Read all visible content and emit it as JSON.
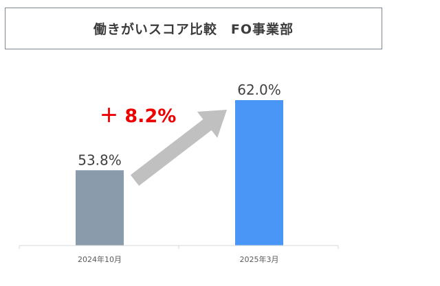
{
  "title": "働きがいスコア比較　FO事業部",
  "change_label": "＋ 8.2%",
  "colors": {
    "bar_2024": "#8a9bab",
    "bar_2025": "#4a96f7",
    "change_text": "#ee0000",
    "arrow": "#c0c0c0",
    "axis": "#d9d9d9",
    "value_label": "#404040",
    "tick_label": "#595959"
  },
  "chart_data": {
    "type": "bar",
    "categories": [
      "2024年10月",
      "2025年3月"
    ],
    "values": [
      53.8,
      62.0
    ],
    "value_labels": [
      "53.8%",
      "62.0%"
    ],
    "title": "働きがいスコア比較　FO事業部",
    "xlabel": "",
    "ylabel": "",
    "ylim": [
      45,
      62
    ],
    "grid": false,
    "legend": "none"
  }
}
